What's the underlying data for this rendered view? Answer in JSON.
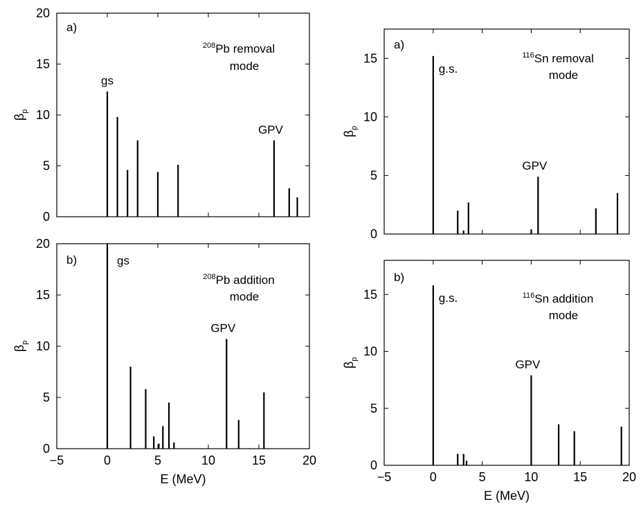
{
  "chart_data": [
    {
      "type": "bar",
      "panel_label": "a)",
      "title_mass": "208",
      "title_rest": "Pb removal",
      "title_line2": "mode",
      "ylabel_base": "β",
      "ylabel_sub": "p",
      "xlabel": "",
      "xlim": [
        -5,
        20
      ],
      "ylim": [
        0,
        20
      ],
      "xticks": [
        -5,
        0,
        5,
        10,
        15,
        20
      ],
      "yticks": [
        0,
        5,
        10,
        15,
        20
      ],
      "show_xtick_labels": false,
      "x": [
        0,
        1.0,
        2.0,
        3.0,
        5.0,
        7.0,
        16.5,
        18.0,
        18.8
      ],
      "values": [
        12.3,
        9.8,
        4.6,
        7.5,
        4.4,
        5.1,
        7.5,
        2.8,
        1.9
      ],
      "annotations": [
        {
          "text": "gs",
          "x": 0,
          "y": 12.3
        },
        {
          "text": "GPV",
          "x": 16.5,
          "y": 7.5
        }
      ]
    },
    {
      "type": "bar",
      "panel_label": "b)",
      "title_mass": "208",
      "title_rest": "Pb addition",
      "title_line2": "mode",
      "ylabel_base": "β",
      "ylabel_sub": "p",
      "xlabel": "E (MeV)",
      "xlim": [
        -5,
        20
      ],
      "ylim": [
        0,
        20
      ],
      "xticks": [
        -5,
        0,
        5,
        10,
        15,
        20
      ],
      "yticks": [
        0,
        5,
        10,
        15,
        20
      ],
      "show_xtick_labels": true,
      "x": [
        0,
        2.3,
        3.8,
        4.6,
        5.1,
        5.5,
        6.1,
        6.6,
        11.8,
        13.0,
        15.5
      ],
      "values": [
        20,
        8.0,
        5.8,
        1.2,
        0.5,
        2.2,
        4.5,
        0.6,
        10.7,
        2.8,
        5.5
      ],
      "annotations": [
        {
          "text": "gs",
          "x": 0,
          "y": 20
        },
        {
          "text": "GPV",
          "x": 11.8,
          "y": 10.7
        }
      ]
    },
    {
      "type": "bar",
      "panel_label": "a)",
      "title_mass": "116",
      "title_rest": "Sn removal",
      "title_line2": "mode",
      "ylabel_base": "β",
      "ylabel_sub": "p",
      "xlabel": "",
      "xlim": [
        -5,
        20
      ],
      "ylim": [
        0,
        17.5
      ],
      "xticks": [
        -5,
        0,
        5,
        10,
        15,
        20
      ],
      "yticks": [
        0,
        5,
        10,
        15
      ],
      "show_xtick_labels": false,
      "x": [
        0,
        2.5,
        3.1,
        3.6,
        10.0,
        10.7,
        16.6,
        18.8
      ],
      "values": [
        15.2,
        2.0,
        0.3,
        2.7,
        0.4,
        4.9,
        2.2,
        3.5
      ],
      "annotations": [
        {
          "text": "g.s.",
          "x": 0,
          "y": 15.2
        },
        {
          "text": "GPV",
          "x": 10.7,
          "y": 4.9
        }
      ]
    },
    {
      "type": "bar",
      "panel_label": "b)",
      "title_mass": "116",
      "title_rest": "Sn addition",
      "title_line2": "mode",
      "ylabel_base": "β",
      "ylabel_sub": "p",
      "xlabel": "E (MeV)",
      "xlim": [
        -5,
        20
      ],
      "ylim": [
        0,
        18
      ],
      "xticks": [
        -5,
        0,
        5,
        10,
        15,
        20
      ],
      "yticks": [
        0,
        5,
        10,
        15
      ],
      "show_xtick_labels": true,
      "x": [
        0,
        2.5,
        3.1,
        3.4,
        10.0,
        12.8,
        14.4,
        19.2
      ],
      "values": [
        15.8,
        1.0,
        1.0,
        0.4,
        7.9,
        3.6,
        3.0,
        3.4
      ],
      "annotations": [
        {
          "text": "g.s.",
          "x": 0,
          "y": 15.8
        },
        {
          "text": "GPV",
          "x": 10.0,
          "y": 7.9
        }
      ]
    }
  ]
}
